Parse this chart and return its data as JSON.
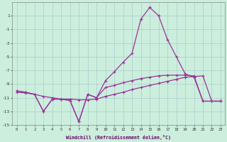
{
  "xlabel": "Windchill (Refroidissement éolien,°C)",
  "background_color": "#cceedd",
  "grid_color": "#aacccc",
  "line_color": "#993399",
  "x_hours": [
    0,
    1,
    2,
    3,
    4,
    5,
    6,
    7,
    8,
    9,
    10,
    11,
    12,
    13,
    14,
    15,
    16,
    17,
    18,
    19,
    20,
    21,
    22,
    23
  ],
  "line1_y": [
    -10.0,
    -10.2,
    -10.5,
    -13.0,
    -11.2,
    -11.2,
    -11.4,
    -14.5,
    -10.5,
    -11.0,
    -8.5,
    -7.2,
    -5.8,
    -4.5,
    0.5,
    2.2,
    1.0,
    -2.5,
    -5.0,
    -7.5,
    -8.0,
    -11.5,
    -11.5,
    -11.5
  ],
  "line2_y": [
    -10.0,
    -10.2,
    -10.5,
    -13.0,
    -11.2,
    -11.2,
    -11.4,
    -14.5,
    -10.5,
    -11.0,
    -9.5,
    -9.2,
    -8.8,
    -8.5,
    -8.2,
    -8.0,
    -7.8,
    -7.7,
    -7.7,
    -7.7,
    -7.8,
    -11.5,
    -11.5,
    -11.5
  ],
  "line3_y": [
    -10.2,
    -10.3,
    -10.5,
    -10.8,
    -11.0,
    -11.2,
    -11.2,
    -11.3,
    -11.3,
    -11.2,
    -10.8,
    -10.5,
    -10.2,
    -9.8,
    -9.5,
    -9.2,
    -8.9,
    -8.6,
    -8.3,
    -8.0,
    -7.9,
    -7.8,
    -11.5,
    -11.5
  ],
  "ylim": [
    -15,
    3
  ],
  "yticks": [
    1,
    -1,
    -3,
    -5,
    -7,
    -9,
    -11,
    -13,
    -15
  ],
  "xlim": [
    0,
    23
  ]
}
